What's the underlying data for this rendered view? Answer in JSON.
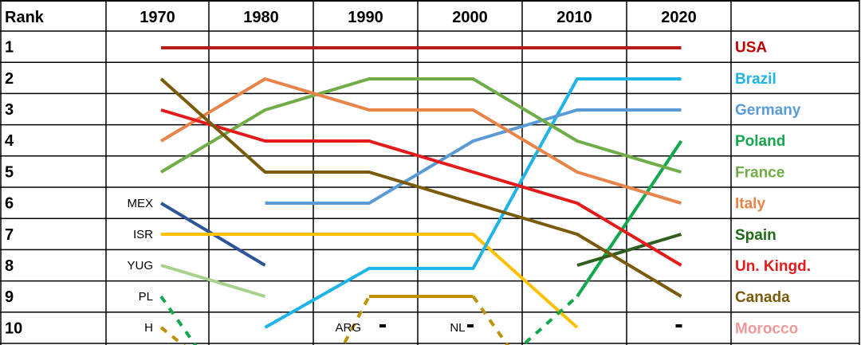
{
  "chart_data": {
    "type": "line",
    "corner_label": "Rank",
    "x": [
      1970,
      1980,
      1990,
      2000,
      2010,
      2020
    ],
    "x_labels": [
      "1970",
      "1980",
      "1990",
      "2000",
      "2010",
      "2020"
    ],
    "ranks": [
      "1",
      "2",
      "3",
      "4",
      "5",
      "6",
      "7",
      "8",
      "9",
      "10"
    ],
    "y_inverted": true,
    "ylim": [
      1,
      10
    ],
    "grid": true,
    "legend_position": "right",
    "series": [
      {
        "name": "USA",
        "color": "#b71c1c",
        "legend_color": "#c00000",
        "points": [
          [
            1970,
            1
          ],
          [
            1980,
            1
          ],
          [
            1990,
            1
          ],
          [
            2000,
            1
          ],
          [
            2010,
            1
          ],
          [
            2020,
            1
          ]
        ]
      },
      {
        "name": "Brazil",
        "color": "#1fb4e8",
        "legend_color": "#1fb4e8",
        "points": [
          [
            1980,
            10
          ],
          [
            1990,
            8.1
          ],
          [
            2000,
            8.1
          ],
          [
            2010,
            2
          ],
          [
            2020,
            2
          ]
        ]
      },
      {
        "name": "Germany",
        "color": "#5b9bd5",
        "legend_color": "#5b9bd5",
        "points": [
          [
            1980,
            6
          ],
          [
            1990,
            6
          ],
          [
            2000,
            4
          ],
          [
            2010,
            3
          ],
          [
            2020,
            3
          ]
        ]
      },
      {
        "name": "Poland",
        "color": "#13a74e",
        "legend_color": "#13a74e",
        "segments": [
          {
            "dashed": false,
            "points": [
              [
                2010,
                9
              ],
              [
                2020,
                4
              ]
            ]
          },
          {
            "dashed": true,
            "points": [
              [
                2005,
                10.5
              ],
              [
                2010,
                9
              ]
            ]
          },
          {
            "dashed": true,
            "points": [
              [
                1970,
                9
              ],
              [
                1974,
                10.9
              ]
            ]
          }
        ]
      },
      {
        "name": "France",
        "color": "#70ad47",
        "legend_color": "#70ad47",
        "points": [
          [
            1970,
            5
          ],
          [
            1980,
            3
          ],
          [
            1990,
            2
          ],
          [
            2000,
            2
          ],
          [
            2010,
            4
          ],
          [
            2020,
            5
          ]
        ]
      },
      {
        "name": "Italy",
        "color": "#e8834a",
        "legend_color": "#e8834a",
        "points": [
          [
            1970,
            4
          ],
          [
            1980,
            2
          ],
          [
            1990,
            3
          ],
          [
            2000,
            3
          ],
          [
            2010,
            5
          ],
          [
            2020,
            6
          ]
        ]
      },
      {
        "name": "Spain",
        "color": "#2f5e1f",
        "legend_color": "#1e6b16",
        "points": [
          [
            2010,
            8
          ],
          [
            2020,
            7
          ]
        ]
      },
      {
        "name": "Un. Kingd.",
        "color": "#e31b1b",
        "legend_color": "#e31b1b",
        "points": [
          [
            1970,
            3
          ],
          [
            1980,
            4
          ],
          [
            1990,
            4
          ],
          [
            2000,
            5
          ],
          [
            2010,
            6
          ],
          [
            2020,
            8
          ]
        ]
      },
      {
        "name": "Canada",
        "color": "#7a5a0c",
        "legend_color": "#7a5a0c",
        "points": [
          [
            1970,
            2
          ],
          [
            1980,
            5
          ],
          [
            1990,
            5
          ],
          [
            2000,
            6
          ],
          [
            2010,
            7
          ],
          [
            2020,
            9
          ]
        ]
      },
      {
        "name": "Morocco",
        "color": "#e89a9a",
        "legend_color": "#ee9a9a",
        "points": []
      }
    ],
    "extra_lines": [
      {
        "color": "#2f5597",
        "points": [
          [
            1970,
            6
          ],
          [
            1980,
            8
          ]
        ]
      },
      {
        "color": "#ffc000",
        "points": [
          [
            1970,
            7
          ],
          [
            2000,
            7
          ],
          [
            2010,
            10
          ]
        ]
      },
      {
        "color": "#a9d18e",
        "points": [
          [
            1970,
            8
          ],
          [
            1980,
            9
          ]
        ]
      },
      {
        "color": "#bf9000",
        "dashed": true,
        "points": [
          [
            1970,
            10
          ],
          [
            1973,
            10.8
          ]
        ]
      },
      {
        "color": "#bf9000",
        "dashed": false,
        "points": [
          [
            1990,
            9
          ],
          [
            2000,
            9
          ]
        ]
      },
      {
        "color": "#bf9000",
        "dashed": true,
        "points": [
          [
            1987,
            10.9
          ],
          [
            1990,
            9
          ]
        ]
      },
      {
        "color": "#bf9000",
        "dashed": true,
        "points": [
          [
            2000,
            9
          ],
          [
            2004,
            10.9
          ]
        ]
      }
    ],
    "annotations": [
      {
        "text": "MEX",
        "x": 1970,
        "rank": 6
      },
      {
        "text": "ISR",
        "x": 1970,
        "rank": 7
      },
      {
        "text": "YUG",
        "x": 1970,
        "rank": 8
      },
      {
        "text": "PL",
        "x": 1970,
        "rank": 9
      },
      {
        "text": "H",
        "x": 1970,
        "rank": 10
      },
      {
        "text": "ARG",
        "x": 1990,
        "rank": 10
      },
      {
        "text": "NL",
        "x": 2000,
        "rank": 10
      }
    ],
    "short_marks": [
      {
        "x": 1990,
        "rank": 10
      },
      {
        "x": 2000,
        "rank": 10
      },
      {
        "x": 2020,
        "rank": 10
      }
    ]
  }
}
